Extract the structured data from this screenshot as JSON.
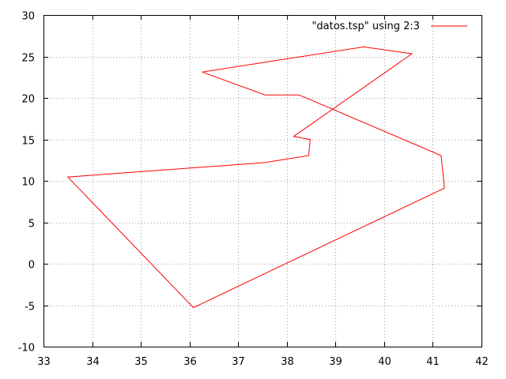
{
  "chart_data": {
    "type": "line",
    "title": "",
    "xlabel": "",
    "ylabel": "",
    "xlim": [
      33,
      42
    ],
    "ylim": [
      -10,
      30
    ],
    "xticks": [
      33,
      34,
      35,
      36,
      37,
      38,
      39,
      40,
      41,
      42
    ],
    "yticks": [
      -10,
      -5,
      0,
      5,
      10,
      15,
      20,
      25,
      30
    ],
    "grid": true,
    "legend_position": "top-right",
    "series": [
      {
        "name": "\"datos.tsp\" using 2:3",
        "color": "#ff0000",
        "points": [
          [
            36.26,
            23.12
          ],
          [
            37.55,
            20.36
          ],
          [
            38.25,
            20.36
          ],
          [
            41.17,
            13.05
          ],
          [
            41.24,
            9.12
          ],
          [
            36.08,
            -5.3
          ],
          [
            33.5,
            10.46
          ],
          [
            37.55,
            12.2
          ],
          [
            38.45,
            13.05
          ],
          [
            38.48,
            14.98
          ],
          [
            38.14,
            15.35
          ],
          [
            40.57,
            25.32
          ],
          [
            39.58,
            26.15
          ],
          [
            36.26,
            23.12
          ]
        ]
      }
    ]
  }
}
